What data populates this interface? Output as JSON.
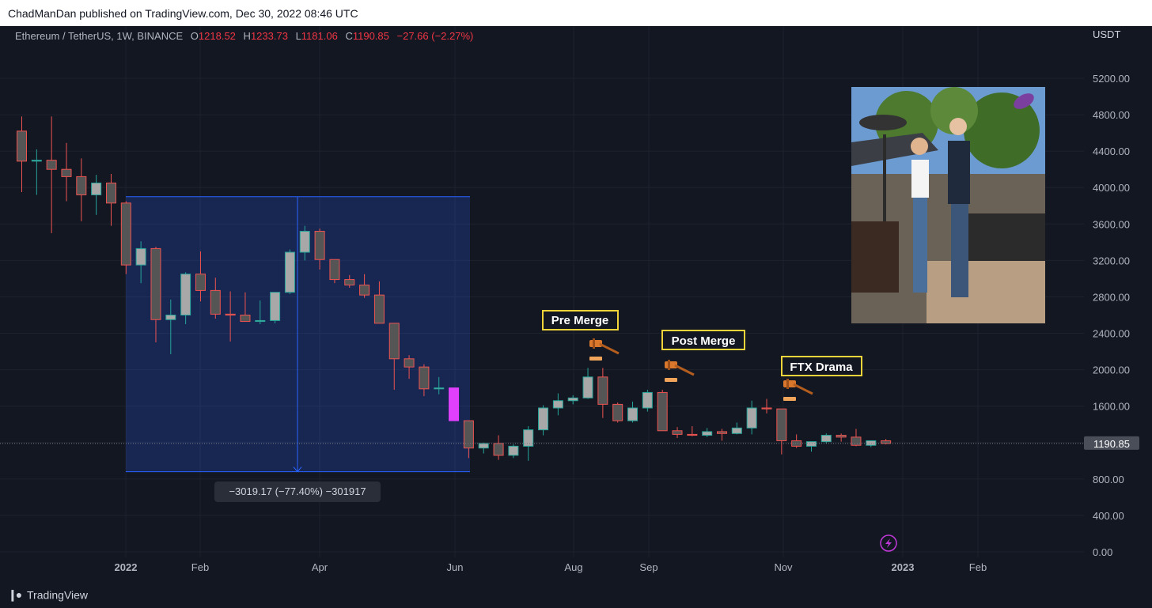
{
  "header": {
    "published": "ChadManDan published on TradingView.com, Dec 30, 2022 08:46 UTC"
  },
  "symbol": {
    "name": "Ethereum / TetherUS, 1W, BINANCE",
    "o_label": "O",
    "o": "1218.52",
    "h_label": "H",
    "h": "1233.73",
    "l_label": "L",
    "l": "1181.06",
    "c_label": "C",
    "c": "1190.85",
    "change": "−27.66 (−2.27%)"
  },
  "axis": {
    "currency": "USDT",
    "y_ticks": [
      "5200.00",
      "4800.00",
      "4400.00",
      "4000.00",
      "3600.00",
      "3200.00",
      "2800.00",
      "2400.00",
      "2000.00",
      "1600.00",
      "1200.00",
      "800.00",
      "400.00",
      "0.00"
    ],
    "x_ticks": [
      "2022",
      "Feb",
      "Apr",
      "Jun",
      "Aug",
      "Sep",
      "Nov",
      "2023",
      "Feb"
    ],
    "last_price": "1190.85"
  },
  "measure": {
    "label": "−3019.17 (−77.40%) −301917"
  },
  "annotations": [
    {
      "text": "Pre Merge",
      "icon": "gavel-icon"
    },
    {
      "text": "Post Merge",
      "icon": "gavel-icon"
    },
    {
      "text": "FTX Drama",
      "icon": "gavel-icon"
    }
  ],
  "photo": {
    "icon": "eggplant-icon"
  },
  "footer": {
    "brand": "TradingView"
  },
  "colors": {
    "up": "#26a69a",
    "down": "#ef5350",
    "highlight": "#e040fb",
    "measure": "#2962ff",
    "annot_border": "#f0d43a"
  },
  "chart_data": {
    "type": "candlestick",
    "ylim": [
      0,
      5200
    ],
    "candles": [
      {
        "o": 4620,
        "h": 4780,
        "l": 3950,
        "c": 4290
      },
      {
        "o": 4290,
        "h": 4420,
        "l": 3920,
        "c": 4300
      },
      {
        "o": 4300,
        "h": 4780,
        "l": 3500,
        "c": 4200
      },
      {
        "o": 4200,
        "h": 4490,
        "l": 3850,
        "c": 4120
      },
      {
        "o": 4120,
        "h": 4320,
        "l": 3630,
        "c": 3920
      },
      {
        "o": 3920,
        "h": 4140,
        "l": 3700,
        "c": 4050
      },
      {
        "o": 4050,
        "h": 4150,
        "l": 3580,
        "c": 3830
      },
      {
        "o": 3830,
        "h": 3850,
        "l": 3050,
        "c": 3150
      },
      {
        "o": 3150,
        "h": 3410,
        "l": 2950,
        "c": 3330
      },
      {
        "o": 3330,
        "h": 3350,
        "l": 2300,
        "c": 2550
      },
      {
        "o": 2550,
        "h": 2770,
        "l": 2170,
        "c": 2600
      },
      {
        "o": 2600,
        "h": 3070,
        "l": 2500,
        "c": 3050
      },
      {
        "o": 3050,
        "h": 3300,
        "l": 2750,
        "c": 2870
      },
      {
        "o": 2870,
        "h": 3010,
        "l": 2560,
        "c": 2610
      },
      {
        "o": 2610,
        "h": 2860,
        "l": 2310,
        "c": 2600
      },
      {
        "o": 2600,
        "h": 2850,
        "l": 2540,
        "c": 2530
      },
      {
        "o": 2530,
        "h": 2760,
        "l": 2500,
        "c": 2540
      },
      {
        "o": 2540,
        "h": 2840,
        "l": 2510,
        "c": 2850
      },
      {
        "o": 2850,
        "h": 3320,
        "l": 2830,
        "c": 3290
      },
      {
        "o": 3290,
        "h": 3580,
        "l": 3200,
        "c": 3520
      },
      {
        "o": 3520,
        "h": 3550,
        "l": 3100,
        "c": 3210
      },
      {
        "o": 3210,
        "h": 3210,
        "l": 2950,
        "c": 2990
      },
      {
        "o": 2990,
        "h": 3040,
        "l": 2900,
        "c": 2930
      },
      {
        "o": 2930,
        "h": 3050,
        "l": 2790,
        "c": 2820
      },
      {
        "o": 2820,
        "h": 2970,
        "l": 2510,
        "c": 2510
      },
      {
        "o": 2510,
        "h": 2510,
        "l": 1780,
        "c": 2120
      },
      {
        "o": 2120,
        "h": 2160,
        "l": 1900,
        "c": 2030
      },
      {
        "o": 2030,
        "h": 2060,
        "l": 1710,
        "c": 1790
      },
      {
        "o": 1790,
        "h": 1920,
        "l": 1730,
        "c": 1800
      },
      {
        "o": 1800,
        "h": 1800,
        "l": 1440,
        "c": 1440
      },
      {
        "o": 1440,
        "h": 1440,
        "l": 1030,
        "c": 1140
      },
      {
        "o": 1140,
        "h": 1200,
        "l": 1080,
        "c": 1190
      },
      {
        "o": 1190,
        "h": 1280,
        "l": 1010,
        "c": 1060
      },
      {
        "o": 1060,
        "h": 1180,
        "l": 1030,
        "c": 1160
      },
      {
        "o": 1160,
        "h": 1380,
        "l": 1000,
        "c": 1340
      },
      {
        "o": 1340,
        "h": 1610,
        "l": 1280,
        "c": 1580
      },
      {
        "o": 1580,
        "h": 1740,
        "l": 1500,
        "c": 1660
      },
      {
        "o": 1660,
        "h": 1720,
        "l": 1620,
        "c": 1690
      },
      {
        "o": 1690,
        "h": 2020,
        "l": 1680,
        "c": 1920
      },
      {
        "o": 1920,
        "h": 2020,
        "l": 1470,
        "c": 1620
      },
      {
        "o": 1620,
        "h": 1640,
        "l": 1420,
        "c": 1440
      },
      {
        "o": 1440,
        "h": 1650,
        "l": 1420,
        "c": 1580
      },
      {
        "o": 1580,
        "h": 1780,
        "l": 1540,
        "c": 1750
      },
      {
        "o": 1750,
        "h": 1780,
        "l": 1330,
        "c": 1330
      },
      {
        "o": 1330,
        "h": 1370,
        "l": 1250,
        "c": 1290
      },
      {
        "o": 1290,
        "h": 1380,
        "l": 1270,
        "c": 1280
      },
      {
        "o": 1280,
        "h": 1360,
        "l": 1260,
        "c": 1320
      },
      {
        "o": 1320,
        "h": 1350,
        "l": 1220,
        "c": 1300
      },
      {
        "o": 1300,
        "h": 1420,
        "l": 1290,
        "c": 1360
      },
      {
        "o": 1360,
        "h": 1660,
        "l": 1290,
        "c": 1580
      },
      {
        "o": 1580,
        "h": 1680,
        "l": 1520,
        "c": 1570
      },
      {
        "o": 1570,
        "h": 1570,
        "l": 1070,
        "c": 1220
      },
      {
        "o": 1220,
        "h": 1290,
        "l": 1140,
        "c": 1160
      },
      {
        "o": 1160,
        "h": 1210,
        "l": 1100,
        "c": 1210
      },
      {
        "o": 1210,
        "h": 1300,
        "l": 1190,
        "c": 1280
      },
      {
        "o": 1280,
        "h": 1300,
        "l": 1210,
        "c": 1260
      },
      {
        "o": 1260,
        "h": 1350,
        "l": 1160,
        "c": 1170
      },
      {
        "o": 1170,
        "h": 1220,
        "l": 1150,
        "c": 1220
      },
      {
        "o": 1220,
        "h": 1240,
        "l": 1180,
        "c": 1190
      }
    ],
    "highlight_index": 29,
    "measure": {
      "from": 3900,
      "to": 880,
      "change": "−3019.17",
      "percent": "−77.40%"
    }
  }
}
